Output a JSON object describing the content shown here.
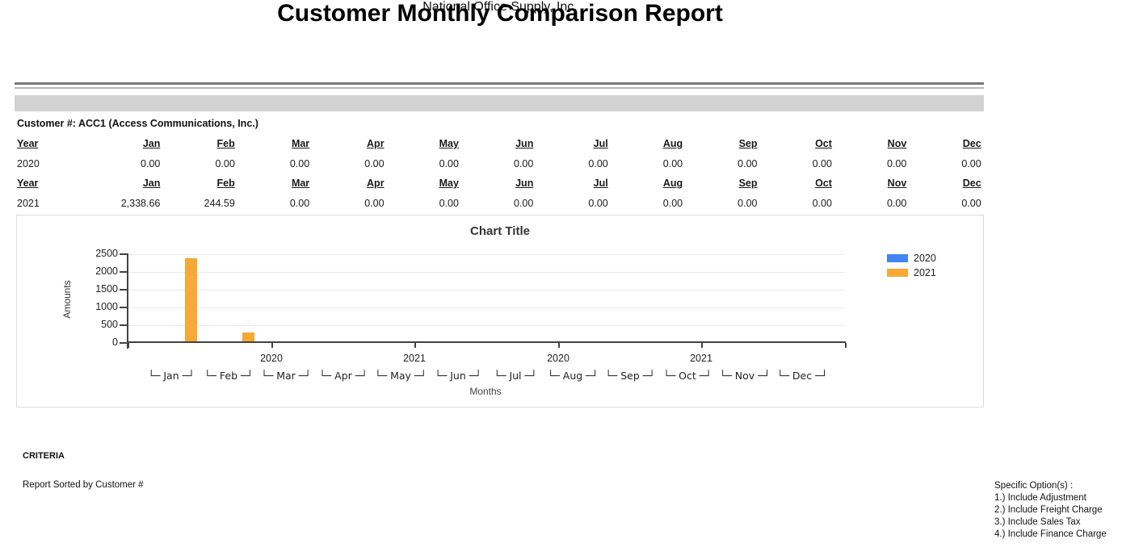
{
  "header": {
    "company": "National Office Supply, Inc.",
    "title": "Customer Monthly Comparison Report"
  },
  "customer_heading": "Customer #: ACC1 (Access Communications, Inc.)",
  "table": {
    "year_header": "Year",
    "months": [
      "Jan",
      "Feb",
      "Mar",
      "Apr",
      "May",
      "Jun",
      "Jul",
      "Aug",
      "Sep",
      "Oct",
      "Nov",
      "Dec"
    ],
    "rows": [
      {
        "year": "2020",
        "values": [
          "0.00",
          "0.00",
          "0.00",
          "0.00",
          "0.00",
          "0.00",
          "0.00",
          "0.00",
          "0.00",
          "0.00",
          "0.00",
          "0.00"
        ]
      },
      {
        "year": "2021",
        "values": [
          "2,338.66",
          "244.59",
          "0.00",
          "0.00",
          "0.00",
          "0.00",
          "0.00",
          "0.00",
          "0.00",
          "0.00",
          "0.00",
          "0.00"
        ]
      }
    ]
  },
  "chart_data": {
    "type": "bar",
    "title": "Chart Title",
    "xlabel": "Months",
    "ylabel": "Amounts",
    "categories": [
      "Jan",
      "Feb",
      "Mar",
      "Apr",
      "May",
      "Jun",
      "Jul",
      "Aug",
      "Sep",
      "Oct",
      "Nov",
      "Dec"
    ],
    "series": [
      {
        "name": "2020",
        "color": "#4285F4",
        "values": [
          0,
          0,
          0,
          0,
          0,
          0,
          0,
          0,
          0,
          0,
          0,
          0
        ]
      },
      {
        "name": "2021",
        "color": "#F7A835",
        "values": [
          2338.66,
          244.59,
          0,
          0,
          0,
          0,
          0,
          0,
          0,
          0,
          0,
          0
        ]
      }
    ],
    "ylim": [
      0,
      2500
    ],
    "yticks": [
      0,
      500,
      1000,
      1500,
      2000,
      2500
    ],
    "axis_year_labels": [
      "2020",
      "2021",
      "2020",
      "2021"
    ],
    "legend_position": "right",
    "grid": true
  },
  "footer": {
    "criteria_label": "CRITERIA",
    "sorted_by": "Report Sorted by Customer #",
    "options_title": "Specific Option(s) :",
    "options": [
      "1.) Include Adjustment",
      "2.) Include Freight Charge",
      "3.) Include Sales Tax",
      "4.) Include Finance Charge"
    ]
  }
}
